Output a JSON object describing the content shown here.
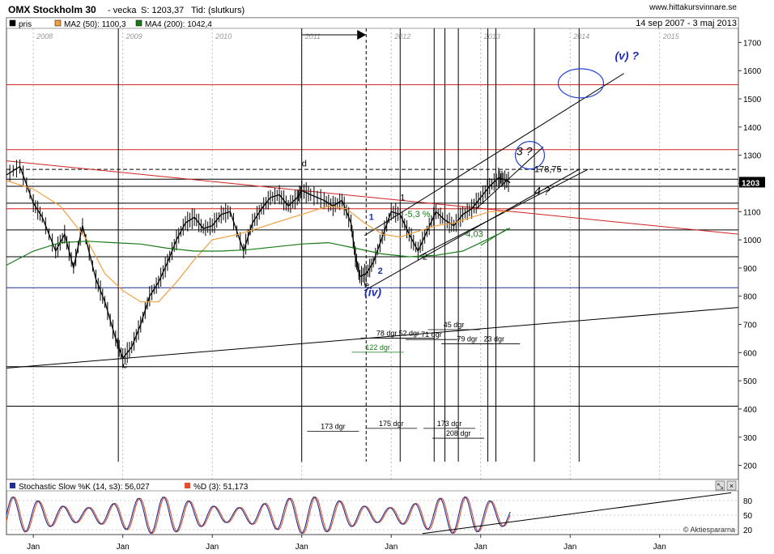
{
  "header": {
    "title": "OMX Stockholm 30",
    "period": "- vecka",
    "last_value": "S: 1203,37",
    "time_label": "Tid: (slutkurs)",
    "site": "www.hittakursvinnare.se",
    "date_range": "14 sep 2007 - 3 maj 2013"
  },
  "legend": [
    {
      "name": "pris",
      "color": "#000000"
    },
    {
      "name": "MA2 (50): 1100,3",
      "color": "#f0a040"
    },
    {
      "name": "MA4 (200): 1042,4",
      "color": "#1a7a1a"
    }
  ],
  "chart_data": [
    {
      "type": "line",
      "title": "OMX Stockholm 30",
      "x_tick_labels": [
        "2008",
        "2009",
        "2010",
        "2011",
        "2012",
        "2013",
        "2014",
        "2015"
      ],
      "ylim": [
        150,
        1750
      ],
      "y_ticks": [
        200,
        300,
        400,
        500,
        600,
        700,
        800,
        900,
        1000,
        1100,
        1200,
        1300,
        1400,
        1500,
        1600,
        1700
      ],
      "last_price_label": "1203",
      "series": [
        {
          "name": "pris",
          "x": [
            2007.7,
            2007.85,
            2008.0,
            2008.1,
            2008.25,
            2008.35,
            2008.45,
            2008.55,
            2008.7,
            2008.8,
            2008.92,
            2009.0,
            2009.1,
            2009.2,
            2009.3,
            2009.4,
            2009.5,
            2009.6,
            2009.7,
            2009.8,
            2009.9,
            2010.0,
            2010.1,
            2010.2,
            2010.35,
            2010.45,
            2010.55,
            2010.65,
            2010.75,
            2010.85,
            2010.95,
            2011.0,
            2011.1,
            2011.25,
            2011.35,
            2011.45,
            2011.55,
            2011.6,
            2011.65,
            2011.72,
            2011.8,
            2011.9,
            2012.0,
            2012.1,
            2012.2,
            2012.3,
            2012.4,
            2012.5,
            2012.6,
            2012.7,
            2012.8,
            2012.9,
            2013.0,
            2013.1,
            2013.2,
            2013.25,
            2013.33
          ],
          "y": [
            1230,
            1260,
            1130,
            1080,
            960,
            1020,
            900,
            1050,
            860,
            780,
            650,
            580,
            620,
            700,
            800,
            850,
            920,
            1000,
            1060,
            1080,
            1040,
            1050,
            1090,
            1100,
            960,
            1060,
            1110,
            1150,
            1160,
            1120,
            1150,
            1175,
            1160,
            1140,
            1120,
            1140,
            1060,
            940,
            870,
            880,
            920,
            1010,
            1100,
            1090,
            1020,
            960,
            1030,
            1100,
            1070,
            1050,
            1090,
            1110,
            1150,
            1190,
            1220,
            1215,
            1203
          ]
        },
        {
          "name": "MA2 (50): 1100,3",
          "x": [
            2007.7,
            2008.0,
            2008.3,
            2008.6,
            2008.8,
            2009.0,
            2009.2,
            2009.4,
            2009.6,
            2009.8,
            2010.0,
            2010.3,
            2010.6,
            2010.9,
            2011.1,
            2011.3,
            2011.5,
            2011.7,
            2011.9,
            2012.1,
            2012.3,
            2012.5,
            2012.7,
            2012.9,
            2013.1,
            2013.33
          ],
          "y": [
            1210,
            1180,
            1120,
            1000,
            880,
            820,
            780,
            780,
            850,
            930,
            1000,
            1020,
            1050,
            1080,
            1100,
            1120,
            1110,
            1060,
            1020,
            1010,
            1030,
            1050,
            1060,
            1080,
            1100,
            1100
          ]
        },
        {
          "name": "MA4 (200): 1042,4",
          "x": [
            2007.7,
            2008.0,
            2008.3,
            2008.6,
            2008.9,
            2009.2,
            2009.5,
            2009.8,
            2010.1,
            2010.4,
            2010.7,
            2011.0,
            2011.3,
            2011.6,
            2011.9,
            2012.2,
            2012.5,
            2012.8,
            2013.0,
            2013.2,
            2013.33
          ],
          "y": [
            910,
            960,
            990,
            995,
            990,
            985,
            970,
            960,
            960,
            965,
            975,
            985,
            990,
            970,
            950,
            940,
            945,
            960,
            990,
            1020,
            1042
          ]
        }
      ],
      "horizontal_levels": [
        1550,
        1320,
        1250,
        1215,
        1190,
        1130,
        1110,
        1035,
        940,
        830,
        550,
        410
      ],
      "annotations": [
        {
          "text": "d",
          "x": 2011.0,
          "y": 1260
        },
        {
          "text": "c",
          "x": 2009.0,
          "y": 545
        },
        {
          "text": "e",
          "x": 2011.7,
          "y": 830
        },
        {
          "text": "(iv)",
          "x": 2011.7,
          "y": 800,
          "color": "#1f2fb0"
        },
        {
          "text": "(v) ?",
          "x": 2014.5,
          "y": 1640,
          "color": "#1f2fb0"
        },
        {
          "text": "1",
          "x": 2011.75,
          "y": 1070,
          "color": "#1f2fb0"
        },
        {
          "text": "2",
          "x": 2011.85,
          "y": 880,
          "color": "#1f2fb0"
        },
        {
          "text": "1",
          "x": 2012.1,
          "y": 1140
        },
        {
          "text": "2",
          "x": 2012.35,
          "y": 930
        },
        {
          "text": "-5,3 %",
          "x": 2012.15,
          "y": 1080,
          "color": "#1a7a1a"
        },
        {
          "text": "-4,03",
          "x": 2012.8,
          "y": 1010,
          "color": "#1a7a1a"
        },
        {
          "text": "178,75",
          "x": 2013.6,
          "y": 1240
        },
        {
          "text": "3 ?",
          "x": 2013.4,
          "y": 1300
        },
        {
          "text": "4 ?",
          "x": 2013.6,
          "y": 1160
        }
      ],
      "day_counts": [
        {
          "text": "122 dgr",
          "x": 2011.85,
          "y": 610,
          "color": "#1a7a1a"
        },
        {
          "text": "78 dgr",
          "x": 2011.95,
          "y": 660
        },
        {
          "text": "52 dgr",
          "x": 2012.2,
          "y": 660
        },
        {
          "text": "71 dgr",
          "x": 2012.45,
          "y": 655
        },
        {
          "text": "45 dgr",
          "x": 2012.7,
          "y": 690
        },
        {
          "text": "79 dgr",
          "x": 2012.85,
          "y": 640
        },
        {
          "text": "23 dgr",
          "x": 2013.15,
          "y": 640
        },
        {
          "text": "173 dgr",
          "x": 2011.35,
          "y": 330
        },
        {
          "text": "175 dgr",
          "x": 2012.0,
          "y": 340
        },
        {
          "text": "173 dgr",
          "x": 2012.65,
          "y": 340
        },
        {
          "text": "208 dgr",
          "x": 2012.75,
          "y": 305
        }
      ]
    },
    {
      "type": "line",
      "title": "Stochastic Slow %K (14, s3): 56,027",
      "x_tick_labels": [
        "Jan",
        "Jan",
        "Jan",
        "Jan",
        "Jan",
        "Jan",
        "Jan",
        "Jan"
      ],
      "ylim": [
        10,
        100
      ],
      "y_ticks": [
        20,
        50,
        80
      ],
      "series": [
        {
          "name": "Stochastic Slow %K (14, s3): 56,027",
          "color": "#1f2f8f"
        },
        {
          "name": "%D (3): 51,173",
          "color": "#e05030"
        }
      ],
      "watermark": "© Aktiespararna"
    }
  ]
}
